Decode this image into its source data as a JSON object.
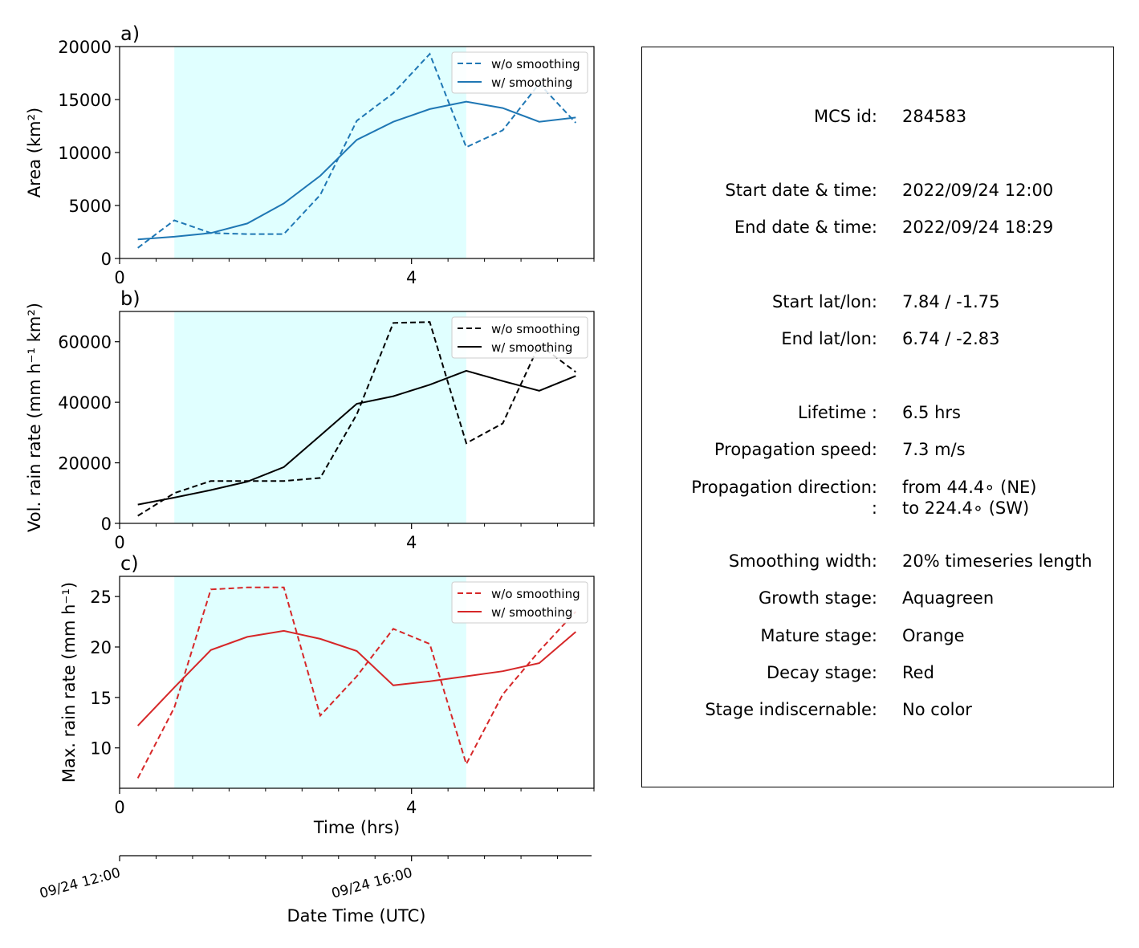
{
  "chart_data": [
    {
      "type": "line",
      "panel": "a)",
      "xlabel": "",
      "ylabel": "Area  (km²)",
      "xlim": [
        0,
        6.5
      ],
      "ylim": [
        0,
        20000
      ],
      "x_ticks": [
        "0",
        "4"
      ],
      "y_ticks": [
        "0",
        "5000",
        "10000",
        "15000",
        "20000"
      ],
      "x": [
        0.25,
        0.75,
        1.25,
        1.75,
        2.25,
        2.75,
        3.25,
        3.75,
        4.25,
        4.75,
        5.25,
        5.75,
        6.25
      ],
      "series": [
        {
          "name": "w/o smoothing",
          "style": "dashed",
          "color": "#1f77b4",
          "values": [
            1000,
            3600,
            2400,
            2300,
            2300,
            6000,
            13000,
            15600,
            19300,
            10500,
            12100,
            16500,
            12800
          ]
        },
        {
          "name": "w/ smoothing",
          "style": "solid",
          "color": "#1f77b4",
          "values": [
            1800,
            2050,
            2400,
            3300,
            5200,
            7800,
            11200,
            12900,
            14100,
            14800,
            14200,
            12900,
            13300
          ]
        }
      ],
      "shade": [
        0.75,
        4.75
      ],
      "legend": "top-right"
    },
    {
      "type": "line",
      "panel": "b)",
      "xlabel": "",
      "ylabel": "Vol. rain rate (mm h⁻¹ km²)",
      "xlim": [
        0,
        6.5
      ],
      "ylim": [
        0,
        70000
      ],
      "x_ticks": [
        "0",
        "4"
      ],
      "y_ticks": [
        "0",
        "20000",
        "40000",
        "60000"
      ],
      "x": [
        0.25,
        0.75,
        1.25,
        1.75,
        2.25,
        2.75,
        3.25,
        3.75,
        4.25,
        4.75,
        5.25,
        5.75,
        6.25
      ],
      "series": [
        {
          "name": "w/o smoothing",
          "style": "dashed",
          "color": "#000000",
          "values": [
            2500,
            10000,
            14000,
            14000,
            14000,
            15000,
            36000,
            66200,
            66500,
            26500,
            33000,
            59000,
            50000
          ]
        },
        {
          "name": "w/ smoothing",
          "style": "solid",
          "color": "#000000",
          "values": [
            6200,
            8500,
            11000,
            13800,
            18600,
            29000,
            39500,
            42000,
            45800,
            50400,
            47000,
            43800,
            48700
          ]
        }
      ],
      "shade": [
        0.75,
        4.75
      ],
      "legend": "top-right"
    },
    {
      "type": "line",
      "panel": "c)",
      "xlabel": "Time (hrs)",
      "ylabel": "Max. rain rate  (mm h⁻¹)",
      "xlim": [
        0,
        6.5
      ],
      "ylim": [
        6,
        27
      ],
      "x_ticks": [
        "0",
        "4"
      ],
      "y_ticks": [
        "10",
        "15",
        "20",
        "25"
      ],
      "x": [
        0.25,
        0.75,
        1.25,
        1.75,
        2.25,
        2.75,
        3.25,
        3.75,
        4.25,
        4.75,
        5.25,
        5.75,
        6.25
      ],
      "series": [
        {
          "name": "w/o smoothing",
          "style": "dashed",
          "color": "#d62728",
          "values": [
            7.0,
            14.0,
            25.7,
            25.9,
            25.9,
            13.2,
            17.1,
            21.8,
            20.3,
            8.4,
            15.3,
            19.6,
            23.5
          ]
        },
        {
          "name": "w/ smoothing",
          "style": "solid",
          "color": "#d62728",
          "values": [
            12.2,
            16.0,
            19.7,
            21.0,
            21.6,
            20.8,
            19.6,
            16.2,
            16.6,
            17.1,
            17.6,
            18.4,
            21.5
          ]
        }
      ],
      "shade": [
        0.75,
        4.75
      ],
      "legend": "top-right"
    }
  ],
  "date_axis": {
    "label": "Date Time (UTC)",
    "ticks": [
      "09/24 12:00",
      "09/24 16:00"
    ]
  },
  "shade_color": "#e0ffff",
  "info": {
    "rows": [
      {
        "label": "MCS id:",
        "value": "284583"
      },
      {
        "label": "Start date & time:",
        "value": "2022/09/24 12:00"
      },
      {
        "label": "End date & time:",
        "value": "2022/09/24 18:29"
      },
      {
        "label": "Start lat/lon:",
        "value": "7.84 / -1.75"
      },
      {
        "label": "End lat/lon:",
        "value": "6.74 / -2.83"
      },
      {
        "label": "Lifetime :",
        "value": "6.5 hrs"
      },
      {
        "label": "Propagation speed:",
        "value": "7.3 m/s"
      },
      {
        "label": "Propagation direction:",
        "value": "from  44.4∘ (NE)"
      },
      {
        "label": ":",
        "value": "to   224.4∘ (SW)"
      },
      {
        "label": "Smoothing width:",
        "value": "20% timeseries length"
      },
      {
        "label": "Growth stage:",
        "value": "Aquagreen"
      },
      {
        "label": "Mature stage:",
        "value": "Orange"
      },
      {
        "label": "Decay stage:",
        "value": "Red"
      },
      {
        "label": "Stage indiscernable:",
        "value": "No color"
      }
    ]
  }
}
